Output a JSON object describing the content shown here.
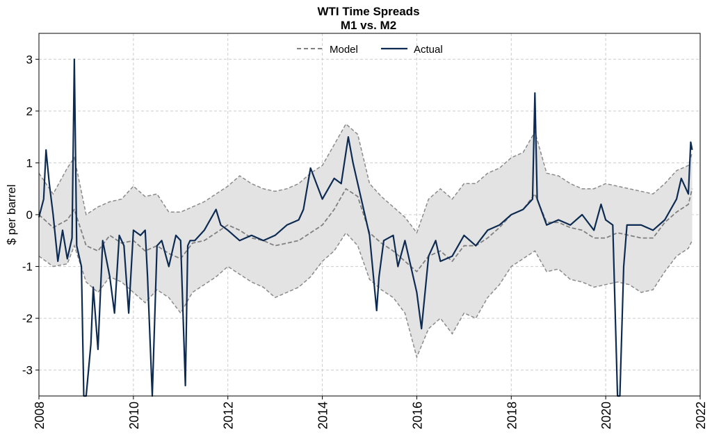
{
  "chart_data": {
    "type": "line",
    "title": "WTI Time Spreads",
    "subtitle": "M1 vs. M2",
    "xlabel": "",
    "ylabel": "$ per barrel",
    "xlim": [
      2008,
      2022
    ],
    "ylim": [
      -3.5,
      3.5
    ],
    "x_ticks": [
      2008,
      2010,
      2012,
      2014,
      2016,
      2018,
      2020,
      2022
    ],
    "y_ticks": [
      -3,
      -2,
      -1,
      0,
      1,
      2,
      3
    ],
    "grid": true,
    "legend_position": "top-center",
    "series": [
      {
        "name": "Model",
        "style": "dashed",
        "color": "#808080",
        "x": [
          2008.0,
          2008.3,
          2008.6,
          2008.75,
          2009.0,
          2009.25,
          2009.5,
          2009.75,
          2010.0,
          2010.25,
          2010.5,
          2010.75,
          2011.0,
          2011.25,
          2011.5,
          2011.75,
          2012.0,
          2012.25,
          2012.5,
          2012.75,
          2013.0,
          2013.25,
          2013.5,
          2013.75,
          2014.0,
          2014.25,
          2014.5,
          2014.75,
          2015.0,
          2015.25,
          2015.5,
          2015.75,
          2016.0,
          2016.25,
          2016.5,
          2016.75,
          2017.0,
          2017.25,
          2017.5,
          2017.75,
          2018.0,
          2018.25,
          2018.5,
          2018.75,
          2019.0,
          2019.25,
          2019.5,
          2019.75,
          2020.0,
          2020.25,
          2020.5,
          2020.75,
          2021.0,
          2021.25,
          2021.5,
          2021.75,
          2021.83
        ],
        "values": [
          0.0,
          -0.25,
          -0.1,
          0.1,
          -0.6,
          -0.7,
          -0.4,
          -0.55,
          -0.5,
          -0.7,
          -0.6,
          -0.75,
          -0.85,
          -0.55,
          -0.5,
          -0.35,
          -0.2,
          -0.3,
          -0.45,
          -0.5,
          -0.6,
          -0.55,
          -0.5,
          -0.35,
          -0.2,
          0.1,
          0.5,
          0.35,
          -0.35,
          -0.55,
          -0.7,
          -0.9,
          -1.1,
          -0.8,
          -0.7,
          -0.9,
          -0.6,
          -0.6,
          -0.45,
          -0.25,
          0.0,
          0.1,
          0.4,
          -0.15,
          -0.15,
          -0.25,
          -0.3,
          -0.45,
          -0.45,
          -0.35,
          -0.4,
          -0.45,
          -0.45,
          -0.15,
          0.05,
          0.2,
          0.5
        ]
      },
      {
        "name": "Actual",
        "style": "solid",
        "color": "#0d2b52",
        "x": [
          2008.0,
          2008.1,
          2008.15,
          2008.22,
          2008.3,
          2008.4,
          2008.5,
          2008.6,
          2008.7,
          2008.75,
          2008.8,
          2008.9,
          2008.95,
          2009.0,
          2009.1,
          2009.15,
          2009.25,
          2009.35,
          2009.5,
          2009.6,
          2009.7,
          2009.8,
          2009.9,
          2010.0,
          2010.15,
          2010.25,
          2010.3,
          2010.4,
          2010.5,
          2010.6,
          2010.75,
          2010.9,
          2011.0,
          2011.1,
          2011.15,
          2011.2,
          2011.3,
          2011.5,
          2011.75,
          2011.85,
          2012.0,
          2012.25,
          2012.5,
          2012.75,
          2013.0,
          2013.25,
          2013.5,
          2013.6,
          2013.75,
          2014.0,
          2014.25,
          2014.4,
          2014.55,
          2014.65,
          2014.75,
          2015.0,
          2015.15,
          2015.2,
          2015.3,
          2015.5,
          2015.6,
          2015.75,
          2016.0,
          2016.1,
          2016.25,
          2016.4,
          2016.5,
          2016.75,
          2017.0,
          2017.25,
          2017.5,
          2017.75,
          2018.0,
          2018.25,
          2018.45,
          2018.5,
          2018.55,
          2018.75,
          2019.0,
          2019.25,
          2019.5,
          2019.75,
          2019.9,
          2020.0,
          2020.15,
          2020.25,
          2020.3,
          2020.38,
          2020.45,
          2020.75,
          2021.0,
          2021.25,
          2021.5,
          2021.6,
          2021.75,
          2021.8,
          2021.83
        ],
        "values": [
          -0.05,
          0.3,
          1.25,
          0.6,
          0.0,
          -0.9,
          -0.3,
          -0.85,
          -0.45,
          3.0,
          -0.6,
          -1.0,
          -3.5,
          -3.5,
          -2.5,
          -1.4,
          -2.6,
          -0.5,
          -1.2,
          -1.9,
          -0.4,
          -0.6,
          -1.9,
          -0.3,
          -0.4,
          -0.3,
          -1.2,
          -3.5,
          -0.6,
          -0.5,
          -1.0,
          -0.4,
          -0.5,
          -3.3,
          -0.6,
          -0.5,
          -0.5,
          -0.3,
          0.1,
          -0.2,
          -0.3,
          -0.5,
          -0.4,
          -0.5,
          -0.4,
          -0.2,
          -0.1,
          0.1,
          0.9,
          0.3,
          0.7,
          0.6,
          1.5,
          1.0,
          0.6,
          -0.4,
          -1.85,
          -1.2,
          -0.5,
          -0.4,
          -1.0,
          -0.5,
          -1.5,
          -2.2,
          -0.8,
          -0.5,
          -0.9,
          -0.8,
          -0.4,
          -0.6,
          -0.3,
          -0.2,
          0.0,
          0.1,
          0.3,
          2.35,
          0.3,
          -0.2,
          -0.1,
          -0.2,
          0.0,
          -0.3,
          0.2,
          -0.1,
          -0.2,
          -3.5,
          -3.5,
          -1.0,
          -0.2,
          -0.2,
          -0.3,
          -0.1,
          0.3,
          0.7,
          0.4,
          1.4,
          1.25
        ]
      }
    ],
    "band": {
      "x": [
        2008.0,
        2008.3,
        2008.6,
        2008.75,
        2009.0,
        2009.25,
        2009.5,
        2009.75,
        2010.0,
        2010.25,
        2010.5,
        2010.75,
        2011.0,
        2011.25,
        2011.5,
        2011.75,
        2012.0,
        2012.25,
        2012.5,
        2012.75,
        2013.0,
        2013.25,
        2013.5,
        2013.75,
        2014.0,
        2014.25,
        2014.5,
        2014.75,
        2015.0,
        2015.25,
        2015.5,
        2015.75,
        2016.0,
        2016.25,
        2016.5,
        2016.75,
        2017.0,
        2017.25,
        2017.5,
        2017.75,
        2018.0,
        2018.25,
        2018.5,
        2018.75,
        2019.0,
        2019.25,
        2019.5,
        2019.75,
        2020.0,
        2020.25,
        2020.5,
        2020.75,
        2021.0,
        2021.25,
        2021.5,
        2021.75,
        2021.83
      ],
      "upper": [
        0.8,
        0.4,
        0.9,
        1.1,
        0.0,
        0.15,
        0.25,
        0.3,
        0.55,
        0.35,
        0.4,
        0.05,
        0.05,
        0.15,
        0.25,
        0.4,
        0.55,
        0.75,
        0.6,
        0.5,
        0.45,
        0.5,
        0.6,
        0.8,
        0.95,
        1.35,
        1.75,
        1.55,
        0.6,
        0.35,
        0.15,
        -0.05,
        -0.35,
        0.3,
        0.5,
        0.3,
        0.6,
        0.6,
        0.8,
        0.9,
        1.1,
        1.2,
        1.6,
        0.8,
        0.75,
        0.6,
        0.5,
        0.5,
        0.6,
        0.55,
        0.5,
        0.45,
        0.4,
        0.6,
        0.85,
        0.95,
        1.2
      ],
      "lower": [
        -0.8,
        -1.0,
        -0.95,
        -0.6,
        -1.3,
        -1.5,
        -1.2,
        -1.3,
        -1.5,
        -1.7,
        -1.45,
        -1.6,
        -1.9,
        -1.5,
        -1.35,
        -1.2,
        -1.0,
        -1.15,
        -1.3,
        -1.4,
        -1.6,
        -1.5,
        -1.4,
        -1.2,
        -0.9,
        -0.7,
        -0.35,
        -0.6,
        -1.25,
        -1.45,
        -1.6,
        -1.9,
        -2.75,
        -2.2,
        -2.0,
        -2.3,
        -1.9,
        -2.0,
        -1.6,
        -1.35,
        -1.0,
        -0.85,
        -0.7,
        -1.1,
        -1.05,
        -1.25,
        -1.3,
        -1.4,
        -1.35,
        -1.3,
        -1.35,
        -1.5,
        -1.45,
        -1.1,
        -0.8,
        -0.65,
        -0.5
      ]
    }
  }
}
